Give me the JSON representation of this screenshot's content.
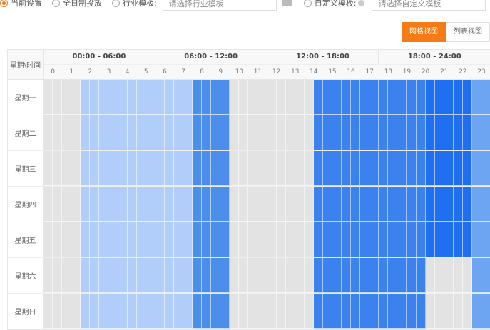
{
  "toolbar": {
    "radios": [
      {
        "label": "当前设置",
        "selected": true
      },
      {
        "label": "全日制投放",
        "selected": false
      },
      {
        "label": "行业模板:",
        "selected": false
      }
    ],
    "industry_placeholder": "请选择行业模板",
    "custom_label": "自定义模板:",
    "custom_placeholder": "请选择自定义模板"
  },
  "views": {
    "grid": "网格视图",
    "list": "列表视图",
    "active": "grid"
  },
  "grid": {
    "corner": "星期\\时间",
    "ranges": [
      "00:00 - 06:00",
      "06:00 - 12:00",
      "12:00 - 18:00",
      "18:00 - 24:00"
    ],
    "hours": [
      "0",
      "1",
      "2",
      "3",
      "4",
      "5",
      "6",
      "7",
      "8",
      "9",
      "10",
      "11",
      "12",
      "13",
      "14",
      "15",
      "16",
      "17",
      "18",
      "19",
      "20",
      "21",
      "22",
      "23"
    ],
    "level_colors": [
      "#e3e3e3",
      "#b1cefa",
      "#4c8eec",
      "#3b82ee",
      "#1f6ff0",
      "#6ea5f2"
    ],
    "rows": [
      {
        "day": "星期一",
        "slots": "000011111111111122220000000003333333333334444455"
      },
      {
        "day": "星期二",
        "slots": "000011111111111122220000000003333333333334444455"
      },
      {
        "day": "星期三",
        "slots": "000011111111111122220000000003333333333334444455"
      },
      {
        "day": "星期四",
        "slots": "000011111111111122220000000003333333333334444455"
      },
      {
        "day": "星期五",
        "slots": "000011111111111122220000000003333333333334444455"
      },
      {
        "day": "星期六",
        "slots": "000011111111111122220000000003333333333330000055"
      },
      {
        "day": "星期日",
        "slots": "000011111111111122220000000003333333333330000055"
      }
    ]
  }
}
